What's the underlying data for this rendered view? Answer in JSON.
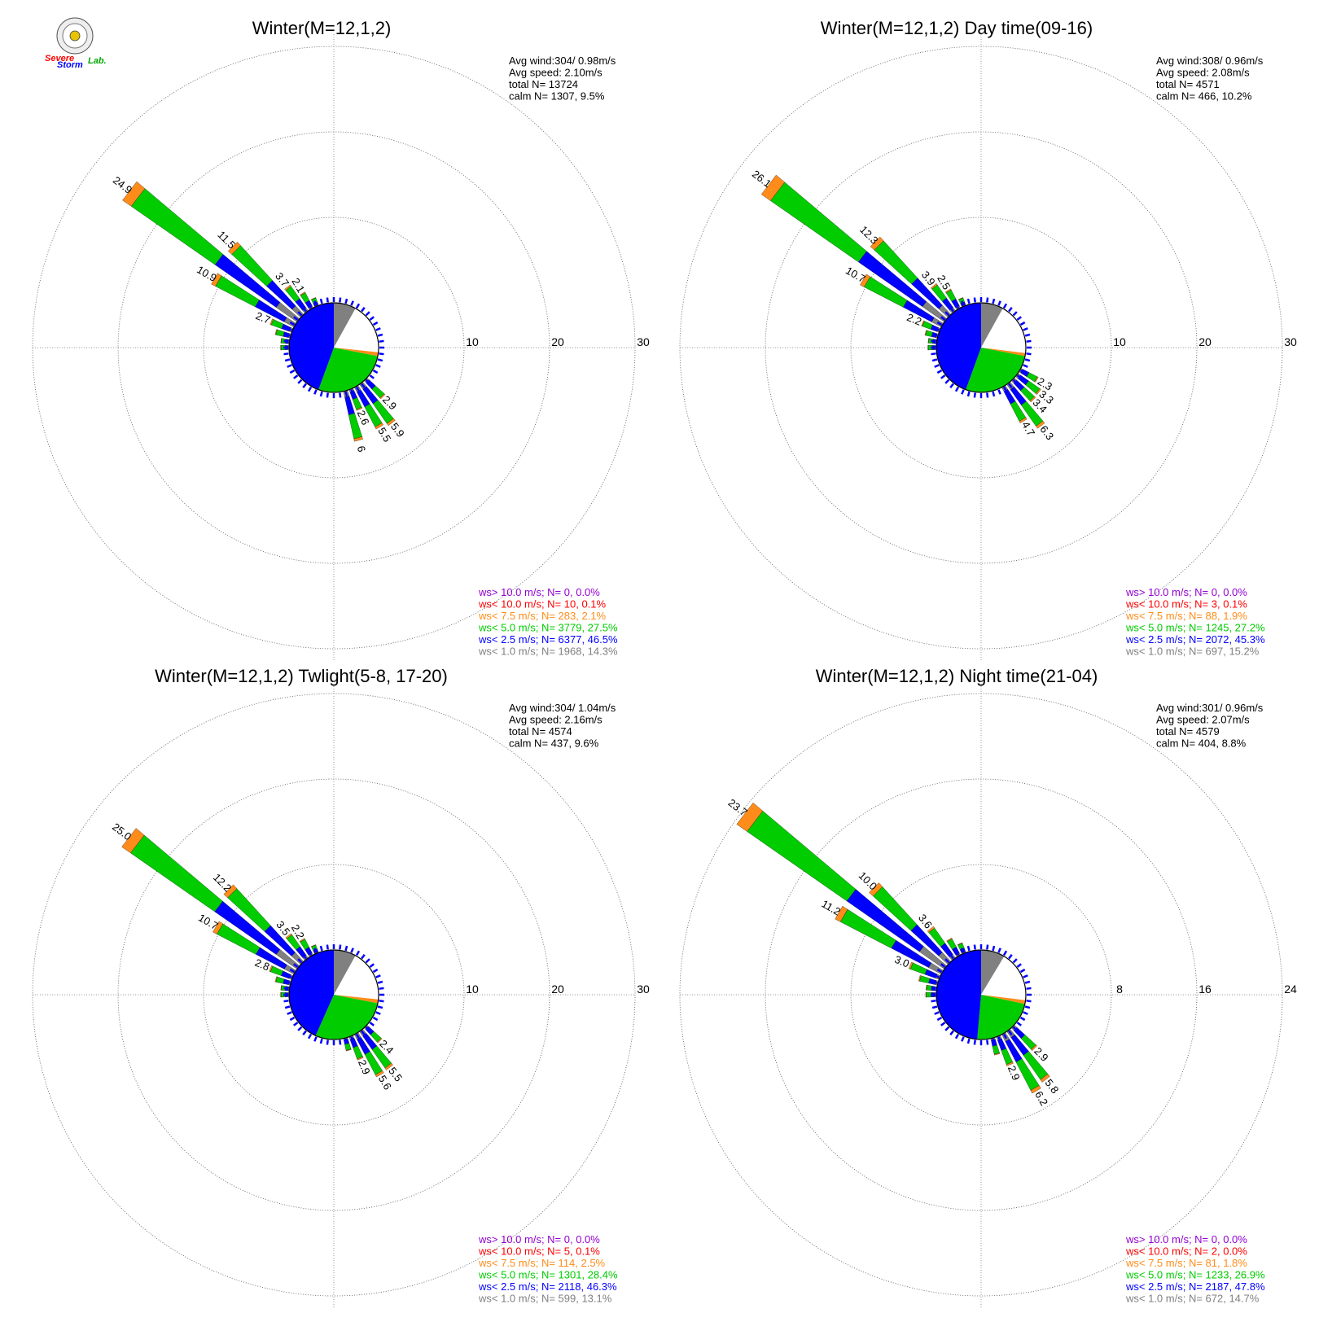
{
  "colors": {
    "gt10": "#9400d3",
    "lt10": "#ff0000",
    "lt7_5": "#ff8c1a",
    "lt5": "#00cc00",
    "lt2_5": "#0000ff",
    "lt1": "#808080"
  },
  "logo": {
    "text_a": "Severe",
    "text_b": "Storm",
    "text_c": "Lab."
  },
  "chart_data": [
    {
      "type": "windrose",
      "title": "Winter(M=12,1,2)",
      "rings": [
        10,
        20,
        30
      ],
      "ring_labels": [
        "10",
        "20",
        "30"
      ],
      "stats": [
        "Avg wind:304/ 0.98m/s",
        "Avg speed: 2.10m/s",
        "total N=       13724",
        "calm N=   1307,   9.5%"
      ],
      "legend": [
        {
          "text": "ws> 10.0 m/s; N=      0,  0.0%",
          "color": "gt10"
        },
        {
          "text": "ws< 10.0 m/s; N=     10,  0.1%",
          "color": "lt10"
        },
        {
          "text": "ws<  7.5 m/s; N=    283,  2.1%",
          "color": "lt7_5"
        },
        {
          "text": "ws<  5.0 m/s; N=  3779, 27.5%",
          "color": "lt5"
        },
        {
          "text": "ws<  2.5 m/s; N=  6377, 46.5%",
          "color": "lt2_5"
        },
        {
          "text": "ws<  1.0 m/s; N=  1968, 14.3%",
          "color": "lt1"
        }
      ],
      "pie": [
        {
          "from": 0,
          "to": 29,
          "color": "lt1"
        },
        {
          "from": 29,
          "to": 96,
          "color": "none"
        },
        {
          "from": 96,
          "to": 101,
          "color": "lt7_5"
        },
        {
          "from": 101,
          "to": 200,
          "color": "lt5"
        },
        {
          "from": 200,
          "to": 360,
          "color": "lt2_5"
        }
      ],
      "bars": [
        {
          "dir": 135,
          "total": 2.9,
          "label": "2.9"
        },
        {
          "dir": 142.5,
          "total": 5.9,
          "label": "5.9"
        },
        {
          "dir": 150,
          "total": 5.5,
          "label": "5.5"
        },
        {
          "dir": 157.5,
          "total": 2.6,
          "label": "2.6"
        },
        {
          "dir": 165,
          "total": 6.0,
          "label": "6"
        },
        {
          "dir": 270,
          "total": 1.0
        },
        {
          "dir": 277.5,
          "total": 1.0
        },
        {
          "dir": 285,
          "total": 1.8
        },
        {
          "dir": 292.5,
          "total": 2.7,
          "label": "2.7"
        },
        {
          "dir": 300,
          "total": 10.9,
          "label": "10.9"
        },
        {
          "dir": 307.5,
          "total": 24.9,
          "label": "24.9"
        },
        {
          "dir": 315,
          "total": 11.5,
          "label": "11.5"
        },
        {
          "dir": 322.5,
          "total": 3.7,
          "label": "3.7"
        },
        {
          "dir": 330,
          "total": 2.1,
          "label": "2.1"
        },
        {
          "dir": 337.5,
          "total": 1.0
        }
      ]
    },
    {
      "type": "windrose",
      "title": "Winter(M=12,1,2) Day time(09-16)",
      "rings": [
        10,
        20,
        30
      ],
      "ring_labels": [
        "10",
        "20",
        "30"
      ],
      "stats": [
        "Avg wind:308/ 0.96m/s",
        "Avg speed: 2.08m/s",
        "total N=        4571",
        "calm N=    466,  10.2%"
      ],
      "legend": [
        {
          "text": "ws> 10.0 m/s; N=      0,  0.0%",
          "color": "gt10"
        },
        {
          "text": "ws< 10.0 m/s; N=      3,  0.1%",
          "color": "lt10"
        },
        {
          "text": "ws<  7.5 m/s; N=     88,  1.9%",
          "color": "lt7_5"
        },
        {
          "text": "ws<  5.0 m/s; N=  1245, 27.2%",
          "color": "lt5"
        },
        {
          "text": "ws<  2.5 m/s; N=  2072, 45.3%",
          "color": "lt2_5"
        },
        {
          "text": "ws<  1.0 m/s; N=    697, 15.2%",
          "color": "lt1"
        }
      ],
      "pie": [
        {
          "from": 0,
          "to": 29,
          "color": "lt1"
        },
        {
          "from": 29,
          "to": 97,
          "color": "none"
        },
        {
          "from": 97,
          "to": 101,
          "color": "lt7_5"
        },
        {
          "from": 101,
          "to": 200,
          "color": "lt5"
        },
        {
          "from": 200,
          "to": 360,
          "color": "lt2_5"
        }
      ],
      "bars": [
        {
          "dir": 120,
          "total": 2.3,
          "label": "2.3"
        },
        {
          "dir": 127.5,
          "total": 3.3,
          "label": "3.3"
        },
        {
          "dir": 135,
          "total": 3.4,
          "label": "3.4"
        },
        {
          "dir": 142.5,
          "total": 6.3,
          "label": "6.3"
        },
        {
          "dir": 150,
          "total": 4.7,
          "label": "4.7"
        },
        {
          "dir": 270,
          "total": 1.0
        },
        {
          "dir": 277.5,
          "total": 1.0
        },
        {
          "dir": 285,
          "total": 1.5
        },
        {
          "dir": 292.5,
          "total": 2.2,
          "label": "2.2"
        },
        {
          "dir": 300,
          "total": 10.7,
          "label": "10.7"
        },
        {
          "dir": 307.5,
          "total": 26.1,
          "label": "26.1"
        },
        {
          "dir": 315,
          "total": 12.3,
          "label": "12.3"
        },
        {
          "dir": 322.5,
          "total": 3.9,
          "label": "3.9"
        },
        {
          "dir": 330,
          "total": 2.5,
          "label": "2.5"
        },
        {
          "dir": 337.5,
          "total": 1.0
        }
      ]
    },
    {
      "type": "windrose",
      "title": "Winter(M=12,1,2) Twlight(5-8, 17-20)",
      "rings": [
        10,
        20,
        30
      ],
      "ring_labels": [
        "10",
        "20",
        "30"
      ],
      "stats": [
        "Avg wind:304/ 1.04m/s",
        "Avg speed: 2.16m/s",
        "total N=        4574",
        "calm N=    437,   9.6%"
      ],
      "legend": [
        {
          "text": "ws> 10.0 m/s; N=      0,  0.0%",
          "color": "gt10"
        },
        {
          "text": "ws< 10.0 m/s; N=      5,  0.1%",
          "color": "lt10"
        },
        {
          "text": "ws<  7.5 m/s; N=    114,  2.5%",
          "color": "lt7_5"
        },
        {
          "text": "ws<  5.0 m/s; N=  1301, 28.4%",
          "color": "lt5"
        },
        {
          "text": "ws<  2.5 m/s; N=  2118, 46.3%",
          "color": "lt2_5"
        },
        {
          "text": "ws<  1.0 m/s; N=    599, 13.1%",
          "color": "lt1"
        }
      ],
      "pie": [
        {
          "from": 0,
          "to": 29,
          "color": "lt1"
        },
        {
          "from": 29,
          "to": 96,
          "color": "none"
        },
        {
          "from": 96,
          "to": 101,
          "color": "lt7_5"
        },
        {
          "from": 101,
          "to": 204,
          "color": "lt5"
        },
        {
          "from": 204,
          "to": 360,
          "color": "lt2_5"
        }
      ],
      "bars": [
        {
          "dir": 135,
          "total": 2.4,
          "label": "2.4"
        },
        {
          "dir": 142.5,
          "total": 5.5,
          "label": "5.5"
        },
        {
          "dir": 150,
          "total": 5.6,
          "label": "5.6"
        },
        {
          "dir": 157.5,
          "total": 2.9,
          "label": "2.9"
        },
        {
          "dir": 165,
          "total": 1.5
        },
        {
          "dir": 270,
          "total": 1.0
        },
        {
          "dir": 277.5,
          "total": 1.0
        },
        {
          "dir": 285,
          "total": 1.8
        },
        {
          "dir": 292.5,
          "total": 2.8,
          "label": "2.8"
        },
        {
          "dir": 300,
          "total": 10.7,
          "label": "10.7"
        },
        {
          "dir": 307.5,
          "total": 25.0,
          "label": "25.0"
        },
        {
          "dir": 315,
          "total": 12.2,
          "label": "12.2"
        },
        {
          "dir": 322.5,
          "total": 3.5,
          "label": "3.5"
        },
        {
          "dir": 330,
          "total": 2.2,
          "label": "2.2"
        },
        {
          "dir": 337.5,
          "total": 1.0
        }
      ]
    },
    {
      "type": "windrose",
      "title": "Winter(M=12,1,2) Night time(21-04)",
      "rings": [
        8,
        16,
        24
      ],
      "ring_labels": [
        "8",
        "16",
        "24"
      ],
      "stats": [
        "Avg wind:301/ 0.96m/s",
        "Avg speed: 2.07m/s",
        "total N=        4579",
        "calm N=    404,   8.8%"
      ],
      "legend": [
        {
          "text": "ws> 10.0 m/s; N=      0,  0.0%",
          "color": "gt10"
        },
        {
          "text": "ws< 10.0 m/s; N=      2,  0.0%",
          "color": "lt10"
        },
        {
          "text": "ws<  7.5 m/s; N=     81,  1.8%",
          "color": "lt7_5"
        },
        {
          "text": "ws<  5.0 m/s; N=  1233, 26.9%",
          "color": "lt5"
        },
        {
          "text": "ws<  2.5 m/s; N=  2187, 47.8%",
          "color": "lt2_5"
        },
        {
          "text": "ws<  1.0 m/s; N=    672, 14.7%",
          "color": "lt1"
        }
      ],
      "pie": [
        {
          "from": 0,
          "to": 31,
          "color": "lt1"
        },
        {
          "from": 31,
          "to": 97,
          "color": "none"
        },
        {
          "from": 97,
          "to": 102,
          "color": "lt7_5"
        },
        {
          "from": 102,
          "to": 185,
          "color": "lt5"
        },
        {
          "from": 185,
          "to": 360,
          "color": "lt2_5"
        }
      ],
      "bars": [
        {
          "dir": 135,
          "total": 2.9,
          "label": "2.9"
        },
        {
          "dir": 142.5,
          "total": 5.8,
          "label": "5.8"
        },
        {
          "dir": 150,
          "total": 6.2,
          "label": "6.2"
        },
        {
          "dir": 157.5,
          "total": 2.9,
          "label": "2.9"
        },
        {
          "dir": 165,
          "total": 1.6
        },
        {
          "dir": 270,
          "total": 1.0
        },
        {
          "dir": 277.5,
          "total": 1.0
        },
        {
          "dir": 285,
          "total": 1.8
        },
        {
          "dir": 292.5,
          "total": 3.0,
          "label": "3.0"
        },
        {
          "dir": 300,
          "total": 11.2,
          "label": "11.2"
        },
        {
          "dir": 307.5,
          "total": 23.7,
          "label": "23.7"
        },
        {
          "dir": 315,
          "total": 10.0,
          "label": "10.0"
        },
        {
          "dir": 322.5,
          "total": 3.6,
          "label": "3.6"
        },
        {
          "dir": 330,
          "total": 1.8
        },
        {
          "dir": 337.5,
          "total": 1.0
        }
      ]
    }
  ]
}
